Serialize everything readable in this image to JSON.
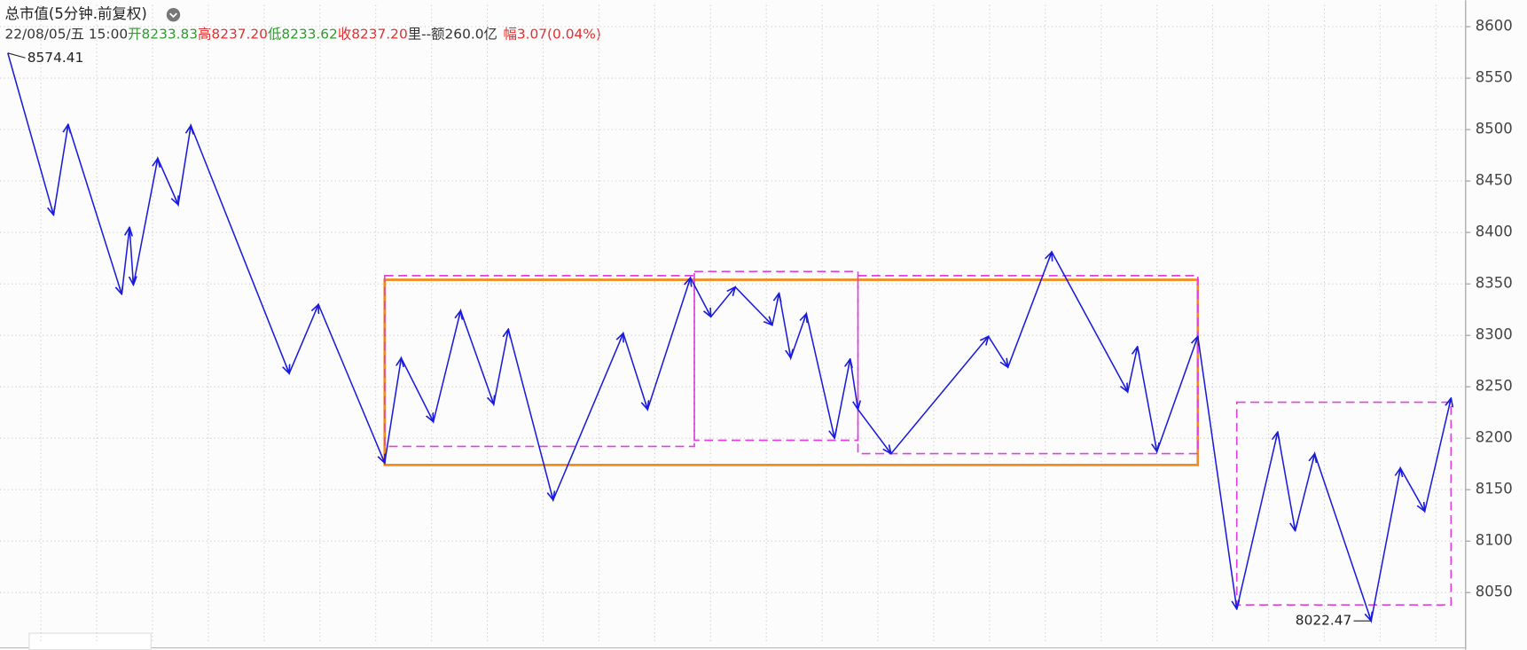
{
  "chart_data": {
    "type": "line",
    "title": "总市值(5分钟.前复权)",
    "info": [
      {
        "text": "22/08/05/五 15:00",
        "color": "#333333"
      },
      {
        "text": "开",
        "color": "#2e9a2e"
      },
      {
        "text": "8233.83",
        "color": "#2e9a2e"
      },
      {
        "text": "高",
        "color": "#e03030"
      },
      {
        "text": "8237.20",
        "color": "#e03030"
      },
      {
        "text": "低",
        "color": "#2e9a2e"
      },
      {
        "text": "8233.62",
        "color": "#2e9a2e"
      },
      {
        "text": "收",
        "color": "#e03030"
      },
      {
        "text": "8237.20",
        "color": "#e03030"
      },
      {
        "text": "里--",
        "color": "#333333"
      },
      {
        "text": "额260.0亿",
        "color": "#333333"
      },
      {
        "text": "幅",
        "color": "#e03030"
      },
      {
        "text": "3.07(0.04%)",
        "color": "#e03030"
      }
    ],
    "xlim": [
      0,
      1505
    ],
    "ylim": [
      8001,
      8621
    ],
    "yticks": [
      8050,
      8100,
      8150,
      8200,
      8250,
      8300,
      8350,
      8400,
      8450,
      8500,
      8550,
      8600
    ],
    "grid": true,
    "series": [
      {
        "color": "#1a1adc",
        "x": [
          8,
          55,
          70,
          125,
          133,
          137,
          162,
          183,
          196,
          297,
          327,
          395,
          412,
          445,
          473,
          507,
          522,
          568,
          640,
          665,
          709,
          730,
          755,
          793,
          800,
          812,
          828,
          857,
          873,
          881,
          915,
          1015,
          1035,
          1080,
          1158,
          1168,
          1188,
          1230,
          1270,
          1312,
          1330,
          1350,
          1408,
          1438,
          1463,
          1490
        ],
        "values": [
          8574.41,
          8417,
          8505,
          8340,
          8405,
          8349,
          8472,
          8427,
          8504,
          8263,
          8330,
          8176,
          8278,
          8216,
          8324,
          8233,
          8306,
          8140,
          8302,
          8228,
          8356,
          8318,
          8347,
          8310,
          8341,
          8278,
          8321,
          8200,
          8277,
          8228,
          8185,
          8299,
          8269,
          8381,
          8245,
          8289,
          8187,
          8299,
          8034,
          8206,
          8110,
          8185,
          8022.47,
          8171,
          8129,
          8239
        ]
      }
    ],
    "boxes": [
      {
        "x": [
          395,
          1230
        ],
        "y": [
          8174,
          8354
        ],
        "color": "#f08c1c",
        "dashed": false
      },
      {
        "x": [
          395,
          713
        ],
        "y": [
          8192,
          8358
        ],
        "color": "#e040e0",
        "dashed": true
      },
      {
        "x": [
          713,
          881
        ],
        "y": [
          8198,
          8362
        ],
        "color": "#e040e0",
        "dashed": true
      },
      {
        "x": [
          881,
          1230
        ],
        "y": [
          8185,
          8358
        ],
        "color": "#e040e0",
        "dashed": true
      },
      {
        "x": [
          1270,
          1490
        ],
        "y": [
          8038,
          8235
        ],
        "color": "#e040e0",
        "dashed": true
      }
    ],
    "annotations": [
      {
        "value": 8574.41,
        "x": 8,
        "side": "right"
      },
      {
        "value": 8022.47,
        "x": 1408,
        "side": "left"
      }
    ]
  }
}
